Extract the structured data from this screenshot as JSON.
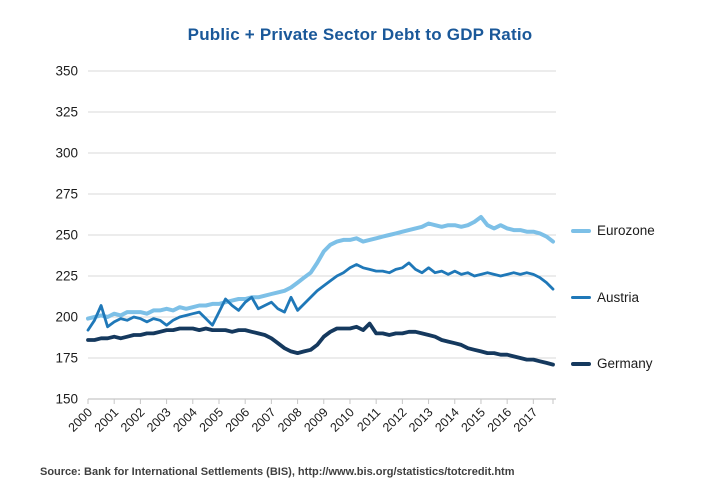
{
  "title": "Public + Private Sector Debt to GDP Ratio",
  "source": "Source: Bank for International Settlements (BIS), http://www.bis.org/statistics/totcredit.htm",
  "colors": {
    "title": "#1a5899",
    "grid": "#d9d9d9",
    "axis": "#c6c6c6",
    "text": "#1c1c1c",
    "source_text": "#3f3f3f",
    "eurozone": "#7dc0e7",
    "austria": "#1f78b8",
    "germany": "#15395e"
  },
  "legend": {
    "items": [
      "Eurozone",
      "Austria",
      "Germany"
    ]
  },
  "chart_data": {
    "type": "line",
    "title": "Public + Private Sector Debt to GDP Ratio",
    "xlabel": "",
    "ylabel": "",
    "x_unit": "quarter",
    "x_start": "2000-Q1",
    "x_end": "2017-Q4",
    "x_tick_labels": [
      "2000",
      "2001",
      "2002",
      "2003",
      "2004",
      "2005",
      "2006",
      "2007",
      "2008",
      "2009",
      "2010",
      "2011",
      "2012",
      "2013",
      "2014",
      "2015",
      "2016",
      "2017"
    ],
    "y_ticks": [
      350,
      325,
      300,
      275,
      250,
      225,
      200,
      175,
      150
    ],
    "ylim": [
      150,
      350
    ],
    "grid": "horizontal",
    "legend_position": "right-of-plot",
    "series": [
      {
        "name": "Eurozone",
        "color": "#7dc0e7",
        "values": [
          199,
          200,
          201,
          200,
          202,
          201,
          203,
          203,
          203,
          202,
          204,
          204,
          205,
          204,
          206,
          205,
          206,
          207,
          207,
          208,
          208,
          209,
          210,
          211,
          211,
          212,
          212,
          213,
          214,
          215,
          216,
          218,
          221,
          224,
          227,
          233,
          240,
          244,
          246,
          247,
          247,
          248,
          246,
          247,
          248,
          249,
          250,
          251,
          252,
          253,
          254,
          255,
          257,
          256,
          255,
          256,
          256,
          255,
          256,
          258,
          261,
          256,
          254,
          256,
          254,
          253,
          253,
          252,
          252,
          251,
          249,
          246
        ]
      },
      {
        "name": "Austria",
        "color": "#1f78b8",
        "values": [
          192,
          198,
          207,
          194,
          197,
          199,
          198,
          200,
          199,
          197,
          199,
          198,
          195,
          198,
          200,
          201,
          202,
          203,
          199,
          195,
          203,
          211,
          207,
          204,
          209,
          212,
          205,
          207,
          209,
          205,
          203,
          212,
          204,
          208,
          212,
          216,
          219,
          222,
          225,
          227,
          230,
          232,
          230,
          229,
          228,
          228,
          227,
          229,
          230,
          233,
          229,
          227,
          230,
          227,
          228,
          226,
          228,
          226,
          227,
          225,
          226,
          227,
          226,
          225,
          226,
          227,
          226,
          227,
          226,
          224,
          221,
          217
        ]
      },
      {
        "name": "Germany",
        "color": "#15395e",
        "values": [
          186,
          186,
          187,
          187,
          188,
          187,
          188,
          189,
          189,
          190,
          190,
          191,
          192,
          192,
          193,
          193,
          193,
          192,
          193,
          192,
          192,
          192,
          191,
          192,
          192,
          191,
          190,
          189,
          187,
          184,
          181,
          179,
          178,
          179,
          180,
          183,
          188,
          191,
          193,
          193,
          193,
          194,
          192,
          196,
          190,
          190,
          189,
          190,
          190,
          191,
          191,
          190,
          189,
          188,
          186,
          185,
          184,
          183,
          181,
          180,
          179,
          178,
          178,
          177,
          177,
          176,
          175,
          174,
          174,
          173,
          172,
          171
        ]
      }
    ]
  }
}
